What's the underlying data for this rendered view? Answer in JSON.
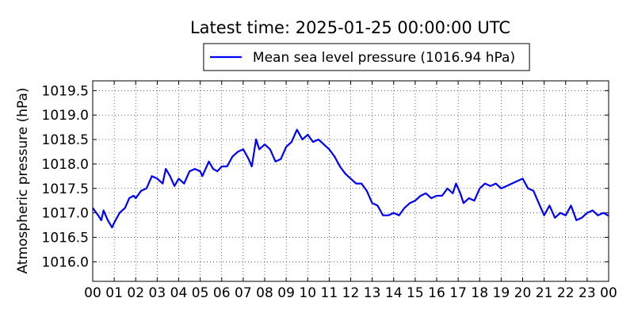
{
  "chart_data": {
    "type": "line",
    "title": "Latest time: 2025-01-25 00:00:00 UTC",
    "ylabel": "Atmospheric pressure (hPa)",
    "legend": "upper center",
    "grid": true,
    "xlim": [
      0,
      24
    ],
    "ylim": [
      1015.6,
      1019.7
    ],
    "xticks": [
      {
        "value": 0,
        "label": "00"
      },
      {
        "value": 1,
        "label": "01"
      },
      {
        "value": 2,
        "label": "02"
      },
      {
        "value": 3,
        "label": "03"
      },
      {
        "value": 4,
        "label": "04"
      },
      {
        "value": 5,
        "label": "05"
      },
      {
        "value": 6,
        "label": "06"
      },
      {
        "value": 7,
        "label": "07"
      },
      {
        "value": 8,
        "label": "08"
      },
      {
        "value": 9,
        "label": "09"
      },
      {
        "value": 10,
        "label": "10"
      },
      {
        "value": 11,
        "label": "11"
      },
      {
        "value": 12,
        "label": "12"
      },
      {
        "value": 13,
        "label": "13"
      },
      {
        "value": 14,
        "label": "14"
      },
      {
        "value": 15,
        "label": "15"
      },
      {
        "value": 16,
        "label": "16"
      },
      {
        "value": 17,
        "label": "17"
      },
      {
        "value": 18,
        "label": "18"
      },
      {
        "value": 19,
        "label": "19"
      },
      {
        "value": 20,
        "label": "20"
      },
      {
        "value": 21,
        "label": "21"
      },
      {
        "value": 22,
        "label": "22"
      },
      {
        "value": 23,
        "label": "23"
      },
      {
        "value": 24,
        "label": "00"
      }
    ],
    "yticks": [
      {
        "value": 1016,
        "label": "1016.0"
      },
      {
        "value": 1016.5,
        "label": "1016.5"
      },
      {
        "value": 1017,
        "label": "1017.0"
      },
      {
        "value": 1017.5,
        "label": "1017.5"
      },
      {
        "value": 1018,
        "label": "1018.0"
      },
      {
        "value": 1018.5,
        "label": "1018.5"
      },
      {
        "value": 1019,
        "label": "1019.0"
      },
      {
        "value": 1019.5,
        "label": "1019.5"
      }
    ],
    "x": [
      0,
      0.25,
      0.4,
      0.5,
      0.7,
      0.9,
      1,
      1.25,
      1.5,
      1.7,
      1.9,
      2,
      2.25,
      2.5,
      2.75,
      3,
      3.25,
      3.4,
      3.6,
      3.8,
      4,
      4.25,
      4.5,
      4.75,
      5,
      5.1,
      5.4,
      5.6,
      5.8,
      6,
      6.25,
      6.5,
      6.75,
      7,
      7.25,
      7.4,
      7.6,
      7.75,
      8,
      8.25,
      8.5,
      8.75,
      9,
      9.25,
      9.5,
      9.75,
      10,
      10.25,
      10.5,
      10.75,
      11,
      11.25,
      11.5,
      11.75,
      12,
      12.25,
      12.5,
      12.75,
      13,
      13.25,
      13.5,
      13.75,
      14,
      14.25,
      14.5,
      14.75,
      15,
      15.25,
      15.5,
      15.75,
      16,
      16.25,
      16.5,
      16.75,
      16.9,
      17.1,
      17.25,
      17.5,
      17.75,
      18,
      18.25,
      18.5,
      18.75,
      19,
      19.25,
      19.5,
      19.75,
      20,
      20.25,
      20.5,
      20.75,
      21,
      21.25,
      21.5,
      21.75,
      22,
      22.25,
      22.5,
      22.75,
      23,
      23.25,
      23.5,
      23.75,
      24
    ],
    "series": [
      {
        "name": "Mean sea level pressure (1016.94 hPa)",
        "color": "#0000ff",
        "values": [
          1017.1,
          1016.95,
          1016.85,
          1017.05,
          1016.85,
          1016.7,
          1016.8,
          1017.0,
          1017.1,
          1017.3,
          1017.35,
          1017.3,
          1017.45,
          1017.5,
          1017.75,
          1017.7,
          1017.6,
          1017.9,
          1017.75,
          1017.55,
          1017.7,
          1017.6,
          1017.85,
          1017.9,
          1017.85,
          1017.75,
          1018.05,
          1017.9,
          1017.85,
          1017.95,
          1017.95,
          1018.15,
          1018.25,
          1018.3,
          1018.1,
          1017.95,
          1018.5,
          1018.3,
          1018.4,
          1018.3,
          1018.05,
          1018.1,
          1018.35,
          1018.45,
          1018.7,
          1018.5,
          1018.6,
          1018.45,
          1018.5,
          1018.4,
          1018.3,
          1018.15,
          1017.95,
          1017.8,
          1017.7,
          1017.6,
          1017.6,
          1017.45,
          1017.2,
          1017.15,
          1016.95,
          1016.95,
          1017.0,
          1016.95,
          1017.1,
          1017.2,
          1017.25,
          1017.35,
          1017.4,
          1017.3,
          1017.35,
          1017.35,
          1017.5,
          1017.4,
          1017.6,
          1017.4,
          1017.2,
          1017.3,
          1017.25,
          1017.5,
          1017.6,
          1017.55,
          1017.6,
          1017.5,
          1017.55,
          1017.6,
          1017.65,
          1017.7,
          1017.5,
          1017.45,
          1017.2,
          1016.95,
          1017.15,
          1016.9,
          1017.0,
          1016.95,
          1017.15,
          1016.85,
          1016.9,
          1017.0,
          1017.05,
          1016.95,
          1017.0,
          1016.94
        ]
      }
    ]
  }
}
